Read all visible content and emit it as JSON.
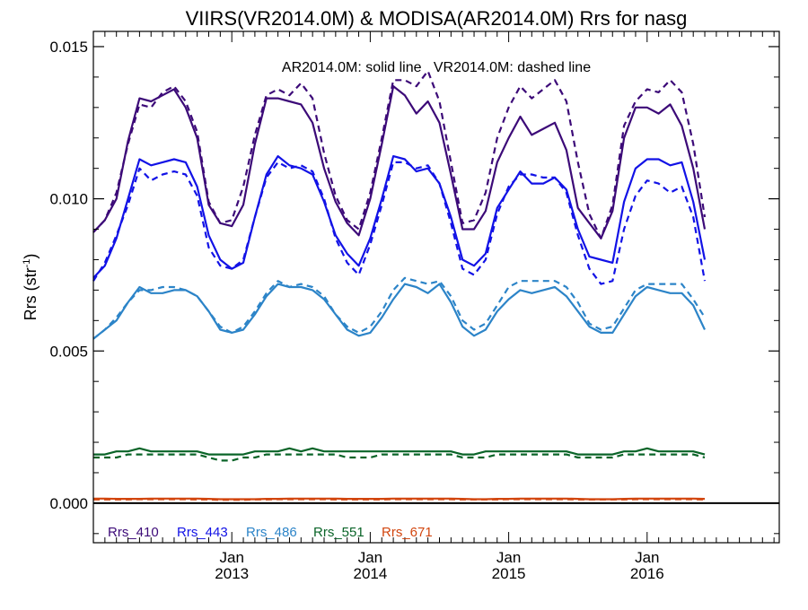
{
  "chart_data": {
    "type": "line",
    "title": "VIIRS(VR2014.0M) & MODISA(AR2014.0M)  Rrs for nasg",
    "subtitle": "AR2014.0M: solid line   VR2014.0M: dashed line",
    "ylabel": "Rrs (str",
    "ylabel_sup": "-1",
    "ylabel_close": ")",
    "ylim": [
      -0.0013,
      0.0155
    ],
    "x_months_start": "2012-01",
    "x_ticks": [
      {
        "month": "Jan",
        "year": "2013"
      },
      {
        "month": "Jan",
        "year": "2014"
      },
      {
        "month": "Jan",
        "year": "2015"
      },
      {
        "month": "Jan",
        "year": "2016"
      }
    ],
    "y_ticks": [
      "0.000",
      "0.005",
      "0.010",
      "0.015"
    ],
    "y_tick_values": [
      0.0,
      0.005,
      0.01,
      0.015
    ],
    "zero_line": true,
    "grid": false,
    "legend_position": "bottom-left",
    "series": [
      {
        "name": "Rrs_410",
        "color": "#3c0a78",
        "line": "solid",
        "values": [
          0.0089,
          0.0093,
          0.01,
          0.0119,
          0.0133,
          0.0132,
          0.0134,
          0.0136,
          0.013,
          0.012,
          0.0098,
          0.0092,
          0.0091,
          0.0098,
          0.0118,
          0.0133,
          0.0133,
          0.0132,
          0.0131,
          0.0125,
          0.011,
          0.0099,
          0.0092,
          0.0088,
          0.01,
          0.0118,
          0.0137,
          0.0134,
          0.0128,
          0.0132,
          0.0125,
          0.0108,
          0.009,
          0.009,
          0.0096,
          0.0112,
          0.012,
          0.0127,
          0.0121,
          0.0123,
          0.0125,
          0.0116,
          0.0097,
          0.0092,
          0.0087,
          0.0096,
          0.012,
          0.013,
          0.013,
          0.0128,
          0.0131,
          0.0124,
          0.011,
          0.009
        ]
      },
      {
        "name": "Rrs_410 VR2014.0M",
        "color": "#3c0a78",
        "line": "dashed",
        "values": [
          0.0089,
          0.0093,
          0.0102,
          0.0118,
          0.0131,
          0.013,
          0.0135,
          0.0137,
          0.0132,
          0.0122,
          0.0099,
          0.0092,
          0.0093,
          0.0104,
          0.0121,
          0.0134,
          0.0136,
          0.0134,
          0.0138,
          0.0133,
          0.0115,
          0.0101,
          0.0093,
          0.009,
          0.0102,
          0.012,
          0.0139,
          0.0139,
          0.0137,
          0.0142,
          0.0132,
          0.0112,
          0.0092,
          0.0093,
          0.0102,
          0.012,
          0.013,
          0.0137,
          0.0133,
          0.0136,
          0.0139,
          0.0132,
          0.0112,
          0.0095,
          0.0087,
          0.0098,
          0.0124,
          0.0132,
          0.0136,
          0.0135,
          0.0139,
          0.0135,
          0.0118,
          0.0094
        ]
      },
      {
        "name": "Rrs_443",
        "color": "#1212e6",
        "line": "solid",
        "values": [
          0.0074,
          0.0078,
          0.0087,
          0.01,
          0.0113,
          0.0111,
          0.0112,
          0.0113,
          0.0112,
          0.0104,
          0.0088,
          0.008,
          0.0077,
          0.0079,
          0.0094,
          0.0108,
          0.0114,
          0.0111,
          0.011,
          0.0108,
          0.0099,
          0.0088,
          0.0082,
          0.0078,
          0.0087,
          0.01,
          0.0114,
          0.0113,
          0.0109,
          0.011,
          0.0105,
          0.0094,
          0.008,
          0.0078,
          0.0082,
          0.0097,
          0.0103,
          0.0109,
          0.0105,
          0.0105,
          0.0107,
          0.0103,
          0.009,
          0.0081,
          0.008,
          0.0079,
          0.0099,
          0.011,
          0.0113,
          0.0113,
          0.0111,
          0.0112,
          0.0099,
          0.008
        ]
      },
      {
        "name": "Rrs_443 VR2014.0M",
        "color": "#1212e6",
        "line": "dashed",
        "values": [
          0.0073,
          0.0079,
          0.0088,
          0.0098,
          0.011,
          0.0106,
          0.0108,
          0.0109,
          0.0108,
          0.0101,
          0.0084,
          0.0078,
          0.0077,
          0.008,
          0.0094,
          0.0107,
          0.0112,
          0.011,
          0.0111,
          0.0109,
          0.01,
          0.0087,
          0.0079,
          0.0075,
          0.0085,
          0.0098,
          0.0112,
          0.0112,
          0.011,
          0.0111,
          0.0105,
          0.0092,
          0.0077,
          0.0075,
          0.008,
          0.0095,
          0.0104,
          0.0108,
          0.0108,
          0.0107,
          0.0107,
          0.0102,
          0.0088,
          0.0077,
          0.0072,
          0.0073,
          0.009,
          0.0101,
          0.0106,
          0.0105,
          0.0102,
          0.0104,
          0.0094,
          0.0073
        ]
      },
      {
        "name": "Rrs_486",
        "color": "#2c84c8",
        "line": "solid",
        "values": [
          0.0054,
          0.0057,
          0.006,
          0.0066,
          0.0071,
          0.0069,
          0.0069,
          0.007,
          0.007,
          0.0068,
          0.0063,
          0.0057,
          0.0056,
          0.0057,
          0.0062,
          0.0068,
          0.0072,
          0.0071,
          0.0071,
          0.007,
          0.0067,
          0.0062,
          0.0057,
          0.0055,
          0.0056,
          0.0061,
          0.0067,
          0.0072,
          0.0071,
          0.0069,
          0.0072,
          0.0066,
          0.0058,
          0.0055,
          0.0057,
          0.0063,
          0.0067,
          0.007,
          0.0069,
          0.007,
          0.0071,
          0.0068,
          0.0063,
          0.0058,
          0.0056,
          0.0056,
          0.0062,
          0.0068,
          0.0071,
          0.007,
          0.0069,
          0.0069,
          0.0065,
          0.0057
        ]
      },
      {
        "name": "Rrs_486 VR2014.0M",
        "color": "#2c84c8",
        "line": "dashed",
        "values": [
          0.0054,
          0.0057,
          0.0061,
          0.0066,
          0.007,
          0.007,
          0.0071,
          0.0071,
          0.007,
          0.0068,
          0.0063,
          0.0058,
          0.0056,
          0.0058,
          0.0063,
          0.0069,
          0.0073,
          0.0071,
          0.0072,
          0.0071,
          0.0068,
          0.0062,
          0.0058,
          0.0056,
          0.0058,
          0.0063,
          0.007,
          0.0074,
          0.0073,
          0.0072,
          0.0073,
          0.0068,
          0.006,
          0.0057,
          0.0059,
          0.0065,
          0.0071,
          0.0073,
          0.0073,
          0.0073,
          0.0073,
          0.0071,
          0.0066,
          0.0059,
          0.0057,
          0.0058,
          0.0064,
          0.007,
          0.0072,
          0.0072,
          0.0072,
          0.0072,
          0.0067,
          0.0061
        ]
      },
      {
        "name": "Rrs_551",
        "color": "#0a6428",
        "line": "solid",
        "values": [
          0.0016,
          0.0016,
          0.0017,
          0.0017,
          0.0018,
          0.0017,
          0.0017,
          0.0017,
          0.0017,
          0.0017,
          0.0016,
          0.0016,
          0.0016,
          0.0016,
          0.0017,
          0.0017,
          0.0017,
          0.0018,
          0.0017,
          0.0018,
          0.0017,
          0.0017,
          0.0017,
          0.0017,
          0.0017,
          0.0017,
          0.0017,
          0.0017,
          0.0017,
          0.0017,
          0.0017,
          0.0017,
          0.0016,
          0.0016,
          0.0017,
          0.0017,
          0.0017,
          0.0017,
          0.0017,
          0.0017,
          0.0017,
          0.0017,
          0.0016,
          0.0016,
          0.0016,
          0.0016,
          0.0017,
          0.0017,
          0.0018,
          0.0017,
          0.0017,
          0.0017,
          0.0017,
          0.0016
        ]
      },
      {
        "name": "Rrs_551 VR2014.0M",
        "color": "#0a6428",
        "line": "dashed",
        "values": [
          0.0015,
          0.0015,
          0.0015,
          0.0016,
          0.0016,
          0.0016,
          0.0016,
          0.0016,
          0.0016,
          0.0016,
          0.0015,
          0.0014,
          0.0014,
          0.0015,
          0.0015,
          0.0016,
          0.0016,
          0.0016,
          0.0016,
          0.0016,
          0.0016,
          0.0016,
          0.0015,
          0.0015,
          0.0015,
          0.0016,
          0.0016,
          0.0016,
          0.0016,
          0.0016,
          0.0016,
          0.0016,
          0.0015,
          0.0015,
          0.0015,
          0.0016,
          0.0016,
          0.0016,
          0.0016,
          0.0016,
          0.0016,
          0.0016,
          0.0015,
          0.0015,
          0.0015,
          0.0015,
          0.0016,
          0.0016,
          0.0016,
          0.0016,
          0.0016,
          0.0016,
          0.0016,
          0.0015
        ]
      },
      {
        "name": "Rrs_671",
        "color": "#d2460f",
        "line": "solid",
        "values": [
          0.00015,
          0.00015,
          0.00014,
          0.00014,
          0.00014,
          0.00015,
          0.00015,
          0.00015,
          0.00015,
          0.00015,
          0.00014,
          0.00013,
          0.00013,
          0.00013,
          0.00013,
          0.00014,
          0.00014,
          0.00015,
          0.00015,
          0.00015,
          0.00015,
          0.00015,
          0.00014,
          0.00014,
          0.00014,
          0.00014,
          0.00015,
          0.00015,
          0.00015,
          0.00015,
          0.00015,
          0.00015,
          0.00014,
          0.00013,
          0.00013,
          0.00014,
          0.00014,
          0.00015,
          0.00015,
          0.00015,
          0.00015,
          0.00015,
          0.00014,
          0.00013,
          0.00013,
          0.00013,
          0.00014,
          0.00015,
          0.00015,
          0.00015,
          0.00015,
          0.00015,
          0.00015,
          0.00014
        ]
      },
      {
        "name": "Rrs_671 VR2014.0M",
        "color": "#d2460f",
        "line": "dashed",
        "values": [
          0.00012,
          0.00012,
          0.00012,
          0.00012,
          0.00013,
          0.00013,
          0.00013,
          0.00013,
          0.00013,
          0.00012,
          0.00012,
          0.00011,
          0.00011,
          0.00011,
          0.00012,
          0.00012,
          0.00013,
          0.00013,
          0.00013,
          0.00013,
          0.00013,
          0.00012,
          0.00012,
          0.00012,
          0.00012,
          0.00012,
          0.00013,
          0.00013,
          0.00013,
          0.00013,
          0.00013,
          0.00013,
          0.00012,
          0.00012,
          0.00012,
          0.00012,
          0.00013,
          0.00013,
          0.00013,
          0.00013,
          0.00013,
          0.00013,
          0.00012,
          0.00012,
          0.00012,
          0.00012,
          0.00012,
          0.00013,
          0.00013,
          0.00013,
          0.00013,
          0.00013,
          0.00013,
          0.00012
        ]
      }
    ],
    "legend": [
      {
        "label": "Rrs_410",
        "color": "#3c0a78"
      },
      {
        "label": "Rrs_443",
        "color": "#1212e6"
      },
      {
        "label": "Rrs_486",
        "color": "#2c84c8"
      },
      {
        "label": "Rrs_551",
        "color": "#0a6428"
      },
      {
        "label": "Rrs_671",
        "color": "#d2460f"
      }
    ]
  }
}
